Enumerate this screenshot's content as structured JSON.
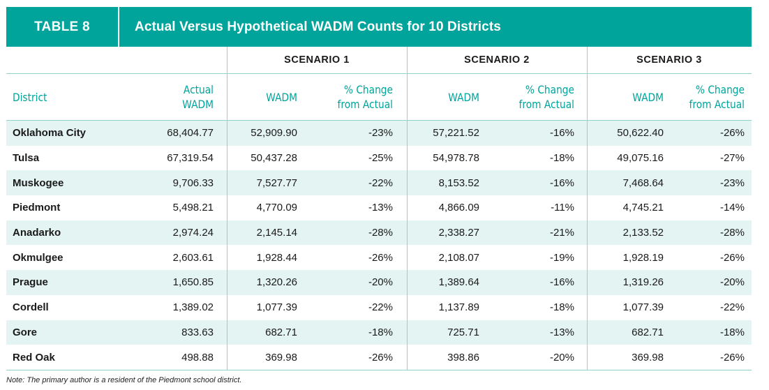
{
  "title": {
    "label": "TABLE 8",
    "text": "Actual Versus Hypothetical WADM Counts for 10 Districts"
  },
  "scenarios": [
    "SCENARIO 1",
    "SCENARIO 2",
    "SCENARIO 3"
  ],
  "columns": {
    "district": "District",
    "actual": "Actual\nWADM",
    "wadm": "WADM",
    "change": "% Change\nfrom Actual"
  },
  "rows": [
    {
      "district": "Oklahoma City",
      "actual": "68,404.77",
      "s1": "52,909.90",
      "c1": "-23%",
      "s2": "57,221.52",
      "c2": "-16%",
      "s3": "50,622.40",
      "c3": "-26%"
    },
    {
      "district": "Tulsa",
      "actual": "67,319.54",
      "s1": "50,437.28",
      "c1": "-25%",
      "s2": "54,978.78",
      "c2": "-18%",
      "s3": "49,075.16",
      "c3": "-27%"
    },
    {
      "district": "Muskogee",
      "actual": "9,706.33",
      "s1": "7,527.77",
      "c1": "-22%",
      "s2": "8,153.52",
      "c2": "-16%",
      "s3": "7,468.64",
      "c3": "-23%"
    },
    {
      "district": "Piedmont",
      "actual": "5,498.21",
      "s1": "4,770.09",
      "c1": "-13%",
      "s2": "4,866.09",
      "c2": "-11%",
      "s3": "4,745.21",
      "c3": "-14%"
    },
    {
      "district": "Anadarko",
      "actual": "2,974.24",
      "s1": "2,145.14",
      "c1": "-28%",
      "s2": "2,338.27",
      "c2": "-21%",
      "s3": "2,133.52",
      "c3": "-28%"
    },
    {
      "district": "Okmulgee",
      "actual": "2,603.61",
      "s1": "1,928.44",
      "c1": "-26%",
      "s2": "2,108.07",
      "c2": "-19%",
      "s3": "1,928.19",
      "c3": "-26%"
    },
    {
      "district": "Prague",
      "actual": "1,650.85",
      "s1": "1,320.26",
      "c1": "-20%",
      "s2": "1,389.64",
      "c2": "-16%",
      "s3": "1,319.26",
      "c3": "-20%"
    },
    {
      "district": "Cordell",
      "actual": "1,389.02",
      "s1": "1,077.39",
      "c1": "-22%",
      "s2": "1,137.89",
      "c2": "-18%",
      "s3": "1,077.39",
      "c3": "-22%"
    },
    {
      "district": "Gore",
      "actual": "833.63",
      "s1": "682.71",
      "c1": "-18%",
      "s2": "725.71",
      "c2": "-13%",
      "s3": "682.71",
      "c3": "-18%"
    },
    {
      "district": "Red Oak",
      "actual": "498.88",
      "s1": "369.98",
      "c1": "-26%",
      "s2": "398.86",
      "c2": "-20%",
      "s3": "369.98",
      "c3": "-26%"
    }
  ],
  "note": "Note: The primary author is a resident of the Piedmont school district.",
  "colors": {
    "accent": "#00a49a",
    "row_shade": "#e4f4f2",
    "rule": "#8fd3cd"
  }
}
